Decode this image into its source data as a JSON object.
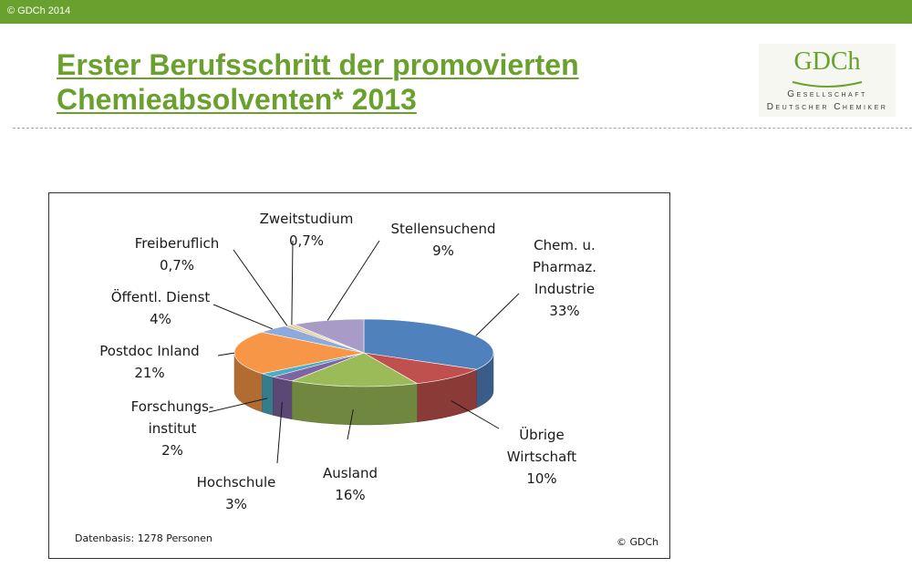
{
  "header": {
    "copyright": "© GDCh 2014"
  },
  "title": {
    "line1": "Erster Berufsschritt der promovierten",
    "line2": "Chemieabsolventen* 2013"
  },
  "logo": {
    "mark": "GDCh",
    "line1": "Gesellschaft",
    "line2": "Deutscher Chemiker"
  },
  "chart_data": {
    "type": "pie",
    "title": "",
    "categories": [
      "Chem. u. Pharmaz. Industrie",
      "Übrige Wirtschaft",
      "Ausland",
      "Hochschule",
      "Forschungsinstitut",
      "Postdoc Inland",
      "Öffentl. Dienst",
      "Freiberuflich",
      "Zweitstudium",
      "Stellensuchend"
    ],
    "values": [
      33,
      10,
      16,
      3,
      2,
      21,
      4,
      0.7,
      0.7,
      9
    ],
    "colors": [
      "#4f81bd",
      "#c0504d",
      "#9bbb59",
      "#8064a2",
      "#4bacc6",
      "#f79646",
      "#8ea9db",
      "#d9c08a",
      "#e0d09a",
      "#a99bc8"
    ],
    "labels": [
      {
        "lines": [
          "Chem. u.",
          "Pharmaz.",
          "Industrie",
          "33%"
        ]
      },
      {
        "lines": [
          "Übrige",
          "Wirtschaft",
          "10%"
        ]
      },
      {
        "lines": [
          "Ausland",
          "16%"
        ]
      },
      {
        "lines": [
          "Hochschule",
          "3%"
        ]
      },
      {
        "lines": [
          "Forschungs-",
          "institut",
          "2%"
        ]
      },
      {
        "lines": [
          "Postdoc Inland",
          "21%"
        ]
      },
      {
        "lines": [
          "Öffentl. Dienst",
          "4%"
        ]
      },
      {
        "lines": [
          "Freiberuflich",
          "0,7%"
        ]
      },
      {
        "lines": [
          "Zweitstudium",
          "0,7%"
        ]
      },
      {
        "lines": [
          "Stellensuchend",
          "9%"
        ]
      }
    ],
    "legend": "none",
    "footnote": "Datenbasis: 1278 Personen",
    "copyright": "© GDCh"
  }
}
